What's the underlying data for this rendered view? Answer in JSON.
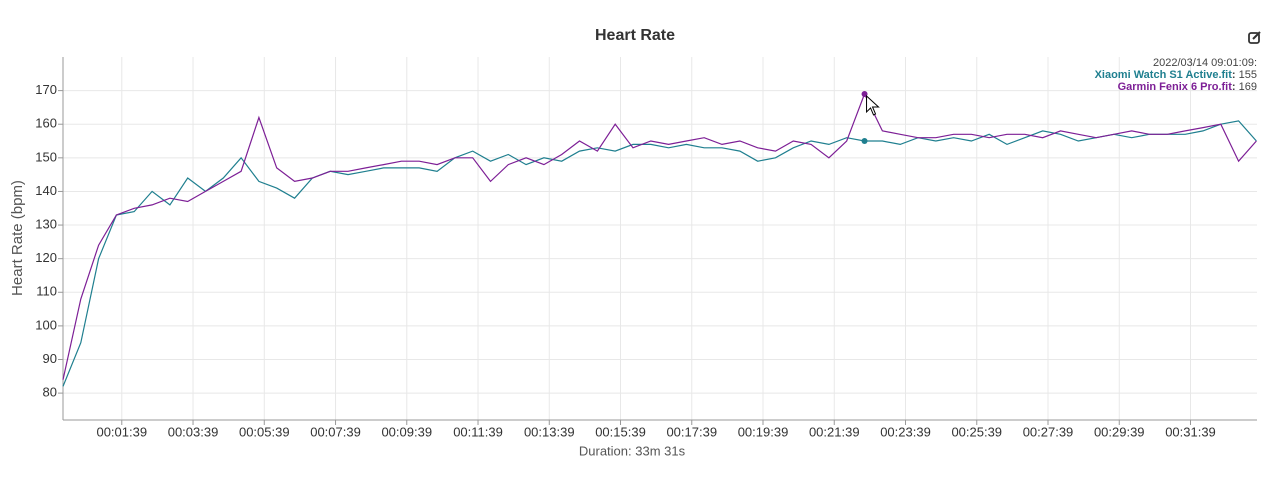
{
  "chart_data": {
    "type": "line",
    "title": "Heart Rate",
    "x_label": "Duration: 33m 31s",
    "y_label": "Heart Rate (bpm)",
    "x": [
      0,
      30,
      60,
      90,
      120,
      150,
      180,
      210,
      240,
      270,
      300,
      330,
      360,
      390,
      420,
      450,
      480,
      510,
      540,
      570,
      600,
      630,
      660,
      690,
      720,
      750,
      780,
      810,
      840,
      870,
      900,
      930,
      960,
      990,
      1020,
      1050,
      1080,
      1110,
      1140,
      1170,
      1200,
      1230,
      1260,
      1290,
      1320,
      1350,
      1380,
      1410,
      1440,
      1470,
      1500,
      1530,
      1560,
      1590,
      1620,
      1650,
      1680,
      1710,
      1740,
      1770,
      1800,
      1830,
      1860,
      1890,
      1920,
      1950,
      1980,
      2010
    ],
    "series": [
      {
        "name": "Xiaomi Watch S1 Active.fit",
        "color": "#1f7f8f",
        "values": [
          82,
          95,
          120,
          133,
          134,
          140,
          136,
          144,
          140,
          144,
          150,
          143,
          141,
          138,
          144,
          146,
          145,
          146,
          147,
          147,
          147,
          146,
          150,
          152,
          149,
          151,
          148,
          150,
          149,
          152,
          153,
          152,
          154,
          154,
          153,
          154,
          153,
          153,
          152,
          149,
          150,
          153,
          155,
          154,
          156,
          155,
          155,
          154,
          156,
          155,
          156,
          155,
          157,
          154,
          156,
          158,
          157,
          155,
          156,
          157,
          156,
          157,
          157,
          157,
          158,
          160,
          161,
          155
        ]
      },
      {
        "name": "Garmin Fenix 6 Pro.fit",
        "color": "#7d1f96",
        "values": [
          84,
          108,
          124,
          133,
          135,
          136,
          138,
          137,
          140,
          143,
          146,
          162,
          147,
          143,
          144,
          146,
          146,
          147,
          148,
          149,
          149,
          148,
          150,
          150,
          143,
          148,
          150,
          148,
          151,
          155,
          152,
          160,
          153,
          155,
          154,
          155,
          156,
          154,
          155,
          153,
          152,
          155,
          154,
          150,
          155,
          169,
          158,
          157,
          156,
          156,
          157,
          157,
          156,
          157,
          157,
          156,
          158,
          157,
          156,
          157,
          158,
          157,
          157,
          158,
          159,
          160,
          149,
          155
        ]
      }
    ],
    "xlim": [
      0,
      2011
    ],
    "ylim": [
      72,
      180
    ],
    "xticks": [
      {
        "value": 99,
        "label": "00:01:39"
      },
      {
        "value": 219,
        "label": "00:03:39"
      },
      {
        "value": 339,
        "label": "00:05:39"
      },
      {
        "value": 459,
        "label": "00:07:39"
      },
      {
        "value": 579,
        "label": "00:09:39"
      },
      {
        "value": 699,
        "label": "00:11:39"
      },
      {
        "value": 819,
        "label": "00:13:39"
      },
      {
        "value": 939,
        "label": "00:15:39"
      },
      {
        "value": 1059,
        "label": "00:17:39"
      },
      {
        "value": 1179,
        "label": "00:19:39"
      },
      {
        "value": 1299,
        "label": "00:21:39"
      },
      {
        "value": 1419,
        "label": "00:23:39"
      },
      {
        "value": 1539,
        "label": "00:25:39"
      },
      {
        "value": 1659,
        "label": "00:27:39"
      },
      {
        "value": 1779,
        "label": "00:29:39"
      },
      {
        "value": 1899,
        "label": "00:31:39"
      }
    ],
    "yticks": [
      80,
      90,
      100,
      110,
      120,
      130,
      140,
      150,
      160,
      170
    ],
    "grid": true,
    "tooltip": {
      "label": "2022/03/14 09:01:09:",
      "index": 45,
      "values": [
        155,
        169
      ]
    }
  }
}
